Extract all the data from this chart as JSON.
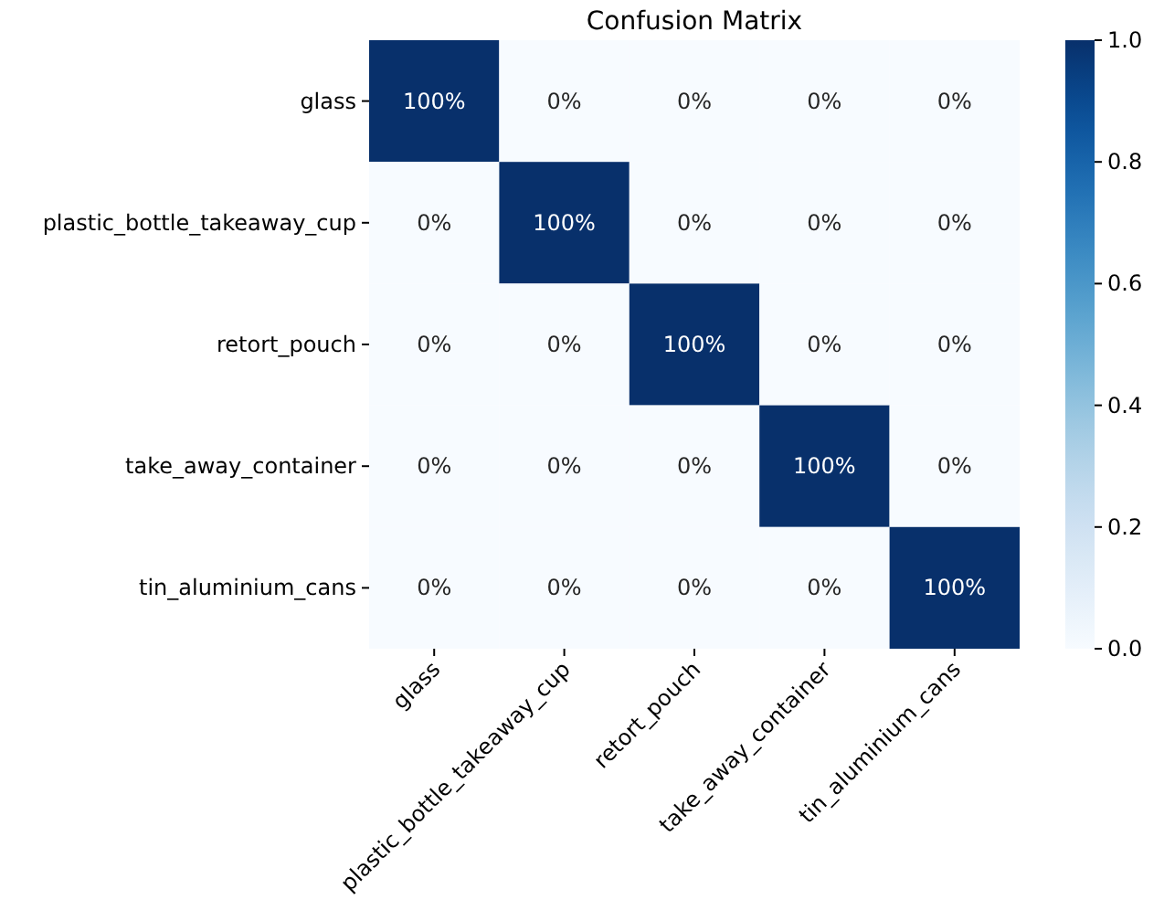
{
  "chart_data": {
    "type": "heatmap",
    "title": "Confusion Matrix",
    "categories": [
      "glass",
      "plastic_bottle_takeaway_cup",
      "retort_pouch",
      "take_away_container",
      "tin_aluminium_cans"
    ],
    "y_categories": [
      "glass",
      "plastic_bottle_takeaway_cup",
      "retort_pouch",
      "take_away_container",
      "tin_aluminium_cans"
    ],
    "cells": [
      [
        1,
        0,
        0,
        0,
        0
      ],
      [
        0,
        1,
        0,
        0,
        0
      ],
      [
        0,
        0,
        1,
        0,
        0
      ],
      [
        0,
        0,
        0,
        1,
        0
      ],
      [
        0,
        0,
        0,
        0,
        1
      ]
    ],
    "cell_labels": [
      [
        "100%",
        "0%",
        "0%",
        "0%",
        "0%"
      ],
      [
        "0%",
        "100%",
        "0%",
        "0%",
        "0%"
      ],
      [
        "0%",
        "0%",
        "100%",
        "0%",
        "0%"
      ],
      [
        "0%",
        "0%",
        "0%",
        "100%",
        "0%"
      ],
      [
        "0%",
        "0%",
        "0%",
        "0%",
        "100%"
      ]
    ],
    "clim": [
      0,
      1
    ],
    "cticks": [
      {
        "value": 0,
        "label": "0.0"
      },
      {
        "value": 0.2,
        "label": "0.2"
      },
      {
        "value": 0.4,
        "label": "0.4"
      },
      {
        "value": 0.6,
        "label": "0.6"
      },
      {
        "value": 0.8,
        "label": "0.8"
      },
      {
        "value": 1,
        "label": "1.0"
      }
    ]
  }
}
